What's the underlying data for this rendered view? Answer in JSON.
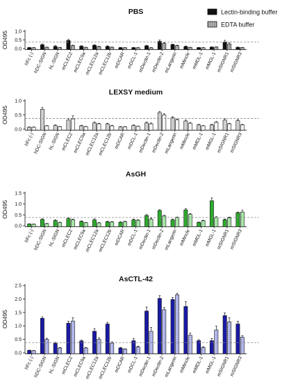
{
  "legend": [
    {
      "label": "Lectin-binding buffer",
      "color": "#111111"
    },
    {
      "label": "EDTA buffer",
      "color": "#9a9a9a"
    }
  ],
  "chart_data": [
    {
      "type": "bar",
      "title": "PBS",
      "ylabel": "OD495",
      "ylim": [
        0,
        1.0
      ],
      "yticks": [
        0.0,
        0.5,
        1.0
      ],
      "threshold": 0.38,
      "categories": [
        "hFc (-)",
        "hDC-SIGN",
        "hL-SIGN",
        "mCLEC2",
        "mCLEC9a",
        "mCLEC12a",
        "mCLEC12b",
        "mDCAR",
        "mDCL-1",
        "mDectin-1",
        "mDectin-2",
        "mLangerin",
        "mMincle",
        "mMDL-1",
        "mMGL-1",
        "mSIGNR1",
        "mSIGNR3"
      ],
      "series": [
        {
          "name": "Lectin-binding buffer",
          "color": "#111111",
          "pattern": "solid",
          "values": [
            0.06,
            0.22,
            0.13,
            0.47,
            0.14,
            0.19,
            0.13,
            0.06,
            0.06,
            0.16,
            0.42,
            0.23,
            0.12,
            0.06,
            0.09,
            0.38,
            0.08
          ],
          "errors": [
            0.01,
            0.05,
            0.04,
            0.06,
            0.03,
            0.04,
            0.03,
            0.01,
            0.01,
            0.03,
            0.07,
            0.03,
            0.03,
            0.01,
            0.01,
            0.1,
            0.01
          ]
        },
        {
          "name": "EDTA buffer",
          "color": "#9a9a9a",
          "pattern": "dotted",
          "values": [
            0.05,
            0.08,
            0.06,
            0.17,
            0.07,
            0.12,
            0.08,
            0.05,
            0.05,
            0.05,
            0.3,
            0.17,
            0.07,
            0.05,
            0.09,
            0.27,
            0.06
          ],
          "errors": [
            0.01,
            0.01,
            0.01,
            0.03,
            0.01,
            0.02,
            0.01,
            0.01,
            0.01,
            0.01,
            0.05,
            0.03,
            0.01,
            0.01,
            0.01,
            0.06,
            0.01
          ]
        }
      ]
    },
    {
      "type": "bar",
      "title": "LEXSY medium",
      "ylabel": "OD495",
      "ylim": [
        0,
        1.0
      ],
      "yticks": [
        0.0,
        0.5,
        1.0
      ],
      "threshold": 0.38,
      "categories": [
        "hFc (-)",
        "hDC-SIGN",
        "hL-SIGN",
        "mCLEC2",
        "mCLEC9a",
        "mCLEC12a",
        "mCLEC12b",
        "mDCAR",
        "mDCL-1",
        "mDectin-1",
        "mDectin-2",
        "mLangerin",
        "mMincle",
        "mMDL-1",
        "mMGL-1",
        "mSIGNR1",
        "mSIGNR3"
      ],
      "series": [
        {
          "name": "Lectin-binding buffer",
          "color": "#cfcfcf",
          "pattern": "solid",
          "values": [
            0.07,
            0.7,
            0.13,
            0.32,
            0.12,
            0.22,
            0.18,
            0.08,
            0.13,
            0.22,
            0.58,
            0.4,
            0.29,
            0.15,
            0.15,
            0.32,
            0.3
          ],
          "errors": [
            0.01,
            0.06,
            0.02,
            0.06,
            0.02,
            0.03,
            0.03,
            0.01,
            0.02,
            0.03,
            0.04,
            0.04,
            0.03,
            0.02,
            0.02,
            0.05,
            0.04
          ]
        },
        {
          "name": "EDTA buffer",
          "color": "#f2f2f2",
          "pattern": "dotted",
          "values": [
            0.07,
            0.12,
            0.09,
            0.36,
            0.09,
            0.19,
            0.12,
            0.08,
            0.1,
            0.19,
            0.5,
            0.33,
            0.21,
            0.12,
            0.24,
            0.19,
            0.15
          ],
          "errors": [
            0.01,
            0.01,
            0.01,
            0.11,
            0.01,
            0.02,
            0.02,
            0.01,
            0.01,
            0.03,
            0.04,
            0.03,
            0.03,
            0.01,
            0.03,
            0.02,
            0.02
          ]
        }
      ]
    },
    {
      "type": "bar",
      "title": "AsGH",
      "ylabel": "OD495",
      "ylim": [
        0,
        1.5
      ],
      "yticks": [
        0.0,
        0.5,
        1.0,
        1.5
      ],
      "threshold": 0.38,
      "categories": [
        "hFc (-)",
        "hDC-SIGN",
        "hL-SIGN",
        "mCLEC2",
        "mCLEC9a",
        "mCLEC12a",
        "mCLEC12b",
        "mDCAR",
        "mDCL-1",
        "mDectin-1",
        "mDectin-2",
        "mLangerin",
        "mMincle",
        "mMDL-1",
        "mMGL-1",
        "mSIGNR1",
        "mSIGNR3"
      ],
      "series": [
        {
          "name": "Lectin-binding buffer",
          "color": "#2eaa2e",
          "pattern": "solid",
          "values": [
            0.08,
            0.29,
            0.24,
            0.33,
            0.2,
            0.27,
            0.18,
            0.16,
            0.27,
            0.47,
            0.7,
            0.27,
            0.73,
            0.15,
            1.15,
            0.28,
            0.6
          ],
          "errors": [
            0.01,
            0.03,
            0.03,
            0.04,
            0.02,
            0.05,
            0.03,
            0.02,
            0.03,
            0.05,
            0.04,
            0.03,
            0.05,
            0.02,
            0.13,
            0.03,
            0.03
          ]
        },
        {
          "name": "EDTA buffer",
          "color": "#9ee29e",
          "pattern": "dotted",
          "values": [
            0.07,
            0.1,
            0.14,
            0.28,
            0.14,
            0.13,
            0.17,
            0.19,
            0.25,
            0.3,
            0.45,
            0.38,
            0.52,
            0.23,
            0.38,
            0.36,
            0.63
          ],
          "errors": [
            0.01,
            0.01,
            0.02,
            0.03,
            0.01,
            0.02,
            0.02,
            0.02,
            0.03,
            0.05,
            0.03,
            0.02,
            0.04,
            0.02,
            0.04,
            0.04,
            0.08
          ]
        }
      ]
    },
    {
      "type": "bar",
      "title": "AsCTL-42",
      "ylabel": "OD495",
      "ylim": [
        0,
        2.5
      ],
      "yticks": [
        0.0,
        0.5,
        1.0,
        1.5,
        2.0,
        2.5
      ],
      "threshold": 0.38,
      "categories": [
        "hFc (-)",
        "hDC-SIGN",
        "hL-SIGN",
        "mCLEC2",
        "mCLEC9a",
        "mCLEC12a",
        "mCLEC12b",
        "mDCAR",
        "mDCL-1",
        "mDectin-1",
        "mDectin-2",
        "mLangerin",
        "mMincle",
        "mMDL-1",
        "mMGL-1",
        "mSIGNR1",
        "mSIGNR3"
      ],
      "series": [
        {
          "name": "Lectin-binding buffer",
          "color": "#1a1aa6",
          "pattern": "solid",
          "values": [
            0.09,
            1.28,
            0.35,
            1.1,
            0.44,
            0.8,
            1.07,
            0.18,
            0.45,
            1.55,
            2.02,
            1.98,
            1.72,
            0.45,
            0.45,
            1.38,
            1.07
          ],
          "errors": [
            0.01,
            0.05,
            0.04,
            0.07,
            0.03,
            0.1,
            0.06,
            0.02,
            0.08,
            0.15,
            0.1,
            0.07,
            0.18,
            0.04,
            0.08,
            0.1,
            0.1
          ]
        },
        {
          "name": "EDTA buffer",
          "color": "#a9aee8",
          "pattern": "dotted",
          "values": [
            0.08,
            0.5,
            0.18,
            1.18,
            0.18,
            0.5,
            0.36,
            0.14,
            0.22,
            0.8,
            1.6,
            2.15,
            0.65,
            0.2,
            0.85,
            1.15,
            0.58
          ],
          "errors": [
            0.01,
            0.04,
            0.02,
            0.12,
            0.02,
            0.05,
            0.05,
            0.01,
            0.03,
            0.14,
            0.08,
            0.06,
            0.08,
            0.03,
            0.14,
            0.15,
            0.06
          ]
        }
      ]
    }
  ]
}
